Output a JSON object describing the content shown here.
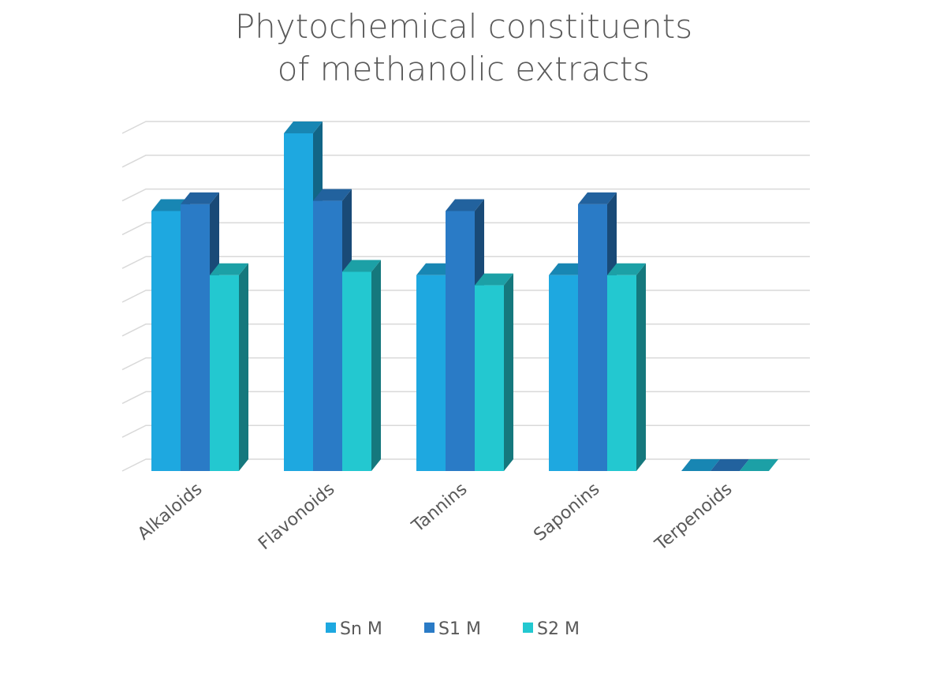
{
  "chart_data": {
    "type": "bar3d",
    "title": "Phytochemical constituents of methanolic extracts",
    "categories": [
      "Alkaloids",
      "Flavonoids",
      "Tannins",
      "Saponins",
      "Terpenoids"
    ],
    "series": [
      {
        "name": "Sn M",
        "color": "#1ea8e0",
        "values": [
          7.7,
          10,
          5.8,
          5.8,
          0
        ]
      },
      {
        "name": "S1 M",
        "color": "#2a7bc6",
        "values": [
          7.9,
          8,
          7.7,
          7.9,
          0
        ]
      },
      {
        "name": "S2 M",
        "color": "#23c8d0",
        "values": [
          5.8,
          5.9,
          5.5,
          5.8,
          0
        ]
      }
    ],
    "ylim": [
      0,
      10
    ],
    "yticks": [
      0,
      1,
      2,
      3,
      4,
      5,
      6,
      7,
      8,
      9,
      10
    ],
    "grid": true,
    "legend": "bottom"
  }
}
